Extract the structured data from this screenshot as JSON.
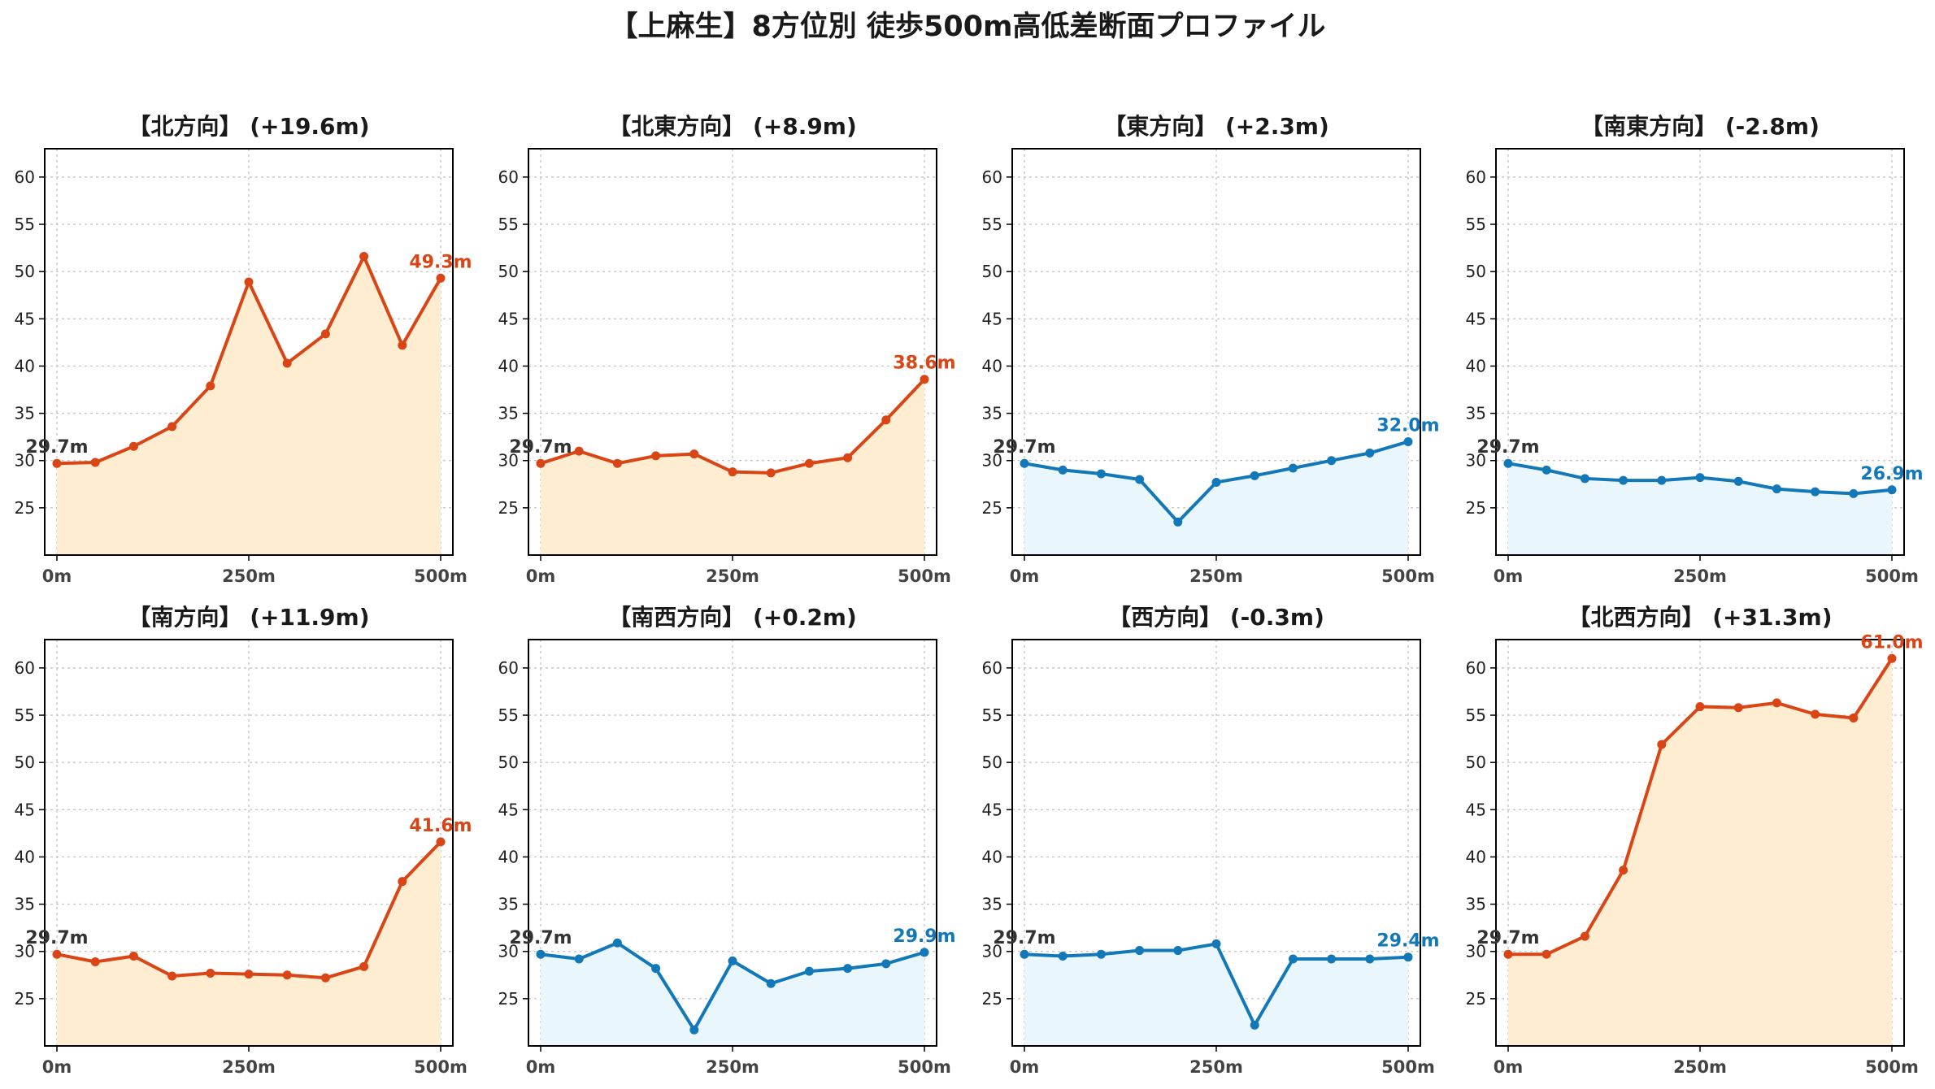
{
  "figure": {
    "title": "【上麻生】8方位別 徒歩500m高低差断面プロファイル"
  },
  "colors": {
    "up_line": "#d94515",
    "up_fill": "#ffedd2",
    "down_line": "#1278b8",
    "down_fill": "#e9f6fb",
    "start_label": "#333333",
    "grid": "#c8c8c8"
  },
  "chart_data": [
    {
      "type": "area",
      "title": "【北方向】 (+19.6m)",
      "x": [
        0,
        50,
        100,
        150,
        200,
        250,
        300,
        350,
        400,
        450,
        500
      ],
      "xticks": [
        "0m",
        "250m",
        "500m"
      ],
      "xtick_values": [
        0,
        250,
        500
      ],
      "ylim": [
        20,
        63
      ],
      "yticks": [
        25,
        30,
        35,
        40,
        45,
        50,
        55,
        60
      ],
      "grid": true,
      "trend": "up",
      "series": [
        {
          "values": [
            29.7,
            29.8,
            31.5,
            33.6,
            37.9,
            48.9,
            40.3,
            43.4,
            51.6,
            42.2,
            49.3
          ]
        }
      ],
      "start_label": "29.7m",
      "end_label": "49.3m"
    },
    {
      "type": "area",
      "title": "【北東方向】 (+8.9m)",
      "x": [
        0,
        50,
        100,
        150,
        200,
        250,
        300,
        350,
        400,
        450,
        500
      ],
      "xticks": [
        "0m",
        "250m",
        "500m"
      ],
      "xtick_values": [
        0,
        250,
        500
      ],
      "ylim": [
        20,
        63
      ],
      "yticks": [
        25,
        30,
        35,
        40,
        45,
        50,
        55,
        60
      ],
      "grid": true,
      "trend": "up",
      "series": [
        {
          "values": [
            29.7,
            31.0,
            29.7,
            30.5,
            30.7,
            28.8,
            28.7,
            29.7,
            30.3,
            34.3,
            38.6
          ]
        }
      ],
      "start_label": "29.7m",
      "end_label": "38.6m"
    },
    {
      "type": "area",
      "title": "【東方向】 (+2.3m)",
      "x": [
        0,
        50,
        100,
        150,
        200,
        250,
        300,
        350,
        400,
        450,
        500
      ],
      "xticks": [
        "0m",
        "250m",
        "500m"
      ],
      "xtick_values": [
        0,
        250,
        500
      ],
      "ylim": [
        20,
        63
      ],
      "yticks": [
        25,
        30,
        35,
        40,
        45,
        50,
        55,
        60
      ],
      "grid": true,
      "trend": "down",
      "series": [
        {
          "values": [
            29.7,
            29.0,
            28.6,
            28.0,
            23.5,
            27.7,
            28.4,
            29.2,
            30.0,
            30.8,
            32.0
          ]
        }
      ],
      "start_label": "29.7m",
      "end_label": "32.0m"
    },
    {
      "type": "area",
      "title": "【南東方向】 (-2.8m)",
      "x": [
        0,
        50,
        100,
        150,
        200,
        250,
        300,
        350,
        400,
        450,
        500
      ],
      "xticks": [
        "0m",
        "250m",
        "500m"
      ],
      "xtick_values": [
        0,
        250,
        500
      ],
      "ylim": [
        20,
        63
      ],
      "yticks": [
        25,
        30,
        35,
        40,
        45,
        50,
        55,
        60
      ],
      "grid": true,
      "trend": "down",
      "series": [
        {
          "values": [
            29.7,
            29.0,
            28.1,
            27.9,
            27.9,
            28.2,
            27.8,
            27.0,
            26.7,
            26.5,
            26.9
          ]
        }
      ],
      "start_label": "29.7m",
      "end_label": "26.9m"
    },
    {
      "type": "area",
      "title": "【南方向】 (+11.9m)",
      "x": [
        0,
        50,
        100,
        150,
        200,
        250,
        300,
        350,
        400,
        450,
        500
      ],
      "xticks": [
        "0m",
        "250m",
        "500m"
      ],
      "xtick_values": [
        0,
        250,
        500
      ],
      "ylim": [
        20,
        63
      ],
      "yticks": [
        25,
        30,
        35,
        40,
        45,
        50,
        55,
        60
      ],
      "grid": true,
      "trend": "up",
      "series": [
        {
          "values": [
            29.7,
            28.9,
            29.5,
            27.4,
            27.7,
            27.6,
            27.5,
            27.2,
            28.4,
            37.4,
            41.6
          ]
        }
      ],
      "start_label": "29.7m",
      "end_label": "41.6m"
    },
    {
      "type": "area",
      "title": "【南西方向】 (+0.2m)",
      "x": [
        0,
        50,
        100,
        150,
        200,
        250,
        300,
        350,
        400,
        450,
        500
      ],
      "xticks": [
        "0m",
        "250m",
        "500m"
      ],
      "xtick_values": [
        0,
        250,
        500
      ],
      "ylim": [
        20,
        63
      ],
      "yticks": [
        25,
        30,
        35,
        40,
        45,
        50,
        55,
        60
      ],
      "grid": true,
      "trend": "down",
      "series": [
        {
          "values": [
            29.7,
            29.2,
            30.9,
            28.2,
            21.7,
            29.0,
            26.6,
            27.9,
            28.2,
            28.7,
            29.9
          ]
        }
      ],
      "start_label": "29.7m",
      "end_label": "29.9m"
    },
    {
      "type": "area",
      "title": "【西方向】 (-0.3m)",
      "x": [
        0,
        50,
        100,
        150,
        200,
        250,
        300,
        350,
        400,
        450,
        500
      ],
      "xticks": [
        "0m",
        "250m",
        "500m"
      ],
      "xtick_values": [
        0,
        250,
        500
      ],
      "ylim": [
        20,
        63
      ],
      "yticks": [
        25,
        30,
        35,
        40,
        45,
        50,
        55,
        60
      ],
      "grid": true,
      "trend": "down",
      "series": [
        {
          "values": [
            29.7,
            29.5,
            29.7,
            30.1,
            30.1,
            30.8,
            22.2,
            29.2,
            29.2,
            29.2,
            29.4
          ]
        }
      ],
      "start_label": "29.7m",
      "end_label": "29.4m"
    },
    {
      "type": "area",
      "title": "【北西方向】 (+31.3m)",
      "x": [
        0,
        50,
        100,
        150,
        200,
        250,
        300,
        350,
        400,
        450,
        500
      ],
      "xticks": [
        "0m",
        "250m",
        "500m"
      ],
      "xtick_values": [
        0,
        250,
        500
      ],
      "ylim": [
        20,
        63
      ],
      "yticks": [
        25,
        30,
        35,
        40,
        45,
        50,
        55,
        60
      ],
      "grid": true,
      "trend": "up",
      "series": [
        {
          "values": [
            29.7,
            29.7,
            31.6,
            38.6,
            51.9,
            55.9,
            55.8,
            56.3,
            55.1,
            54.7,
            61.0
          ]
        }
      ],
      "start_label": "29.7m",
      "end_label": "61.0m"
    }
  ]
}
